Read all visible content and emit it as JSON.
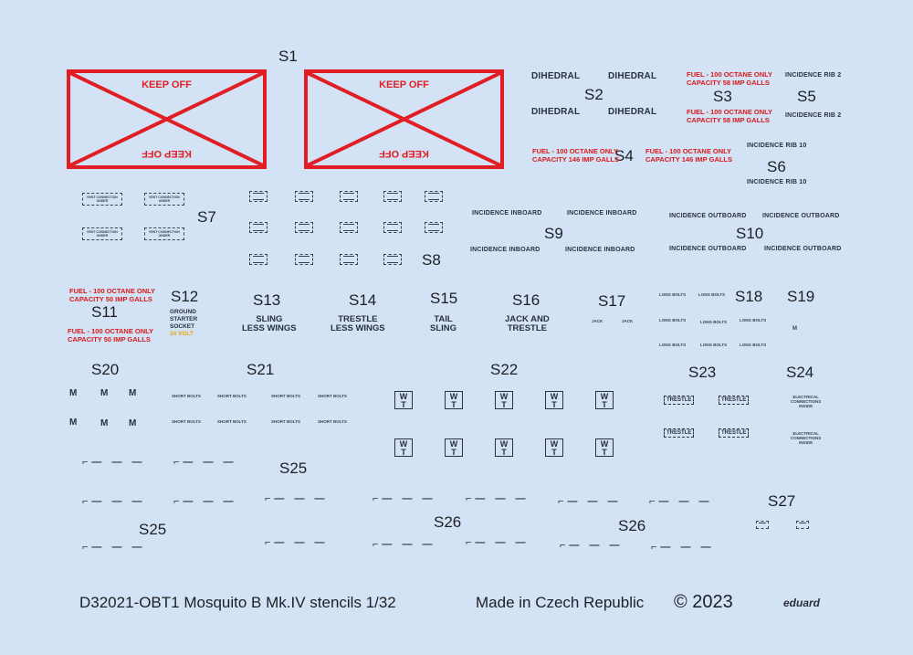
{
  "set_labels": [
    "S1",
    "S2",
    "S3",
    "S4",
    "S5",
    "S6",
    "S7",
    "S8",
    "S9",
    "S10",
    "S11",
    "S12",
    "S13",
    "S14",
    "S15",
    "S16",
    "S17",
    "S18",
    "S19",
    "S20",
    "S21",
    "S22",
    "S23",
    "S24",
    "S25",
    "S26",
    "S27"
  ],
  "stencils": {
    "keep_off": "KEEP OFF",
    "dihedral": "DIHEDRAL",
    "fuel_58": [
      "FUEL - 100 OCTANE ONLY",
      "CAPACITY 58 IMP GALLS"
    ],
    "fuel_146": [
      "FUEL - 100 OCTANE ONLY",
      "CAPACITY 146 IMP GALLS"
    ],
    "fuel_50": [
      "FUEL - 100 OCTANE ONLY",
      "CAPACITY 50 IMP GALLS"
    ],
    "incidence_rib_2": "INCIDENCE RIB 2",
    "incidence_rib_10": "INCIDENCE  RIB  10",
    "incidence_inboard": "INCIDENCE  INBOARD",
    "incidence_outboard": "INCIDENCE  OUTBOARD",
    "vent_connection": [
      "VENT CONNECTION",
      "UNDER"
    ],
    "ground_starter": [
      "GROUND",
      "STARTER",
      "SOCKET",
      "24 VOLT"
    ],
    "sling_less_wings": [
      "SLING",
      "LESS WINGS"
    ],
    "trestle_less_wings": [
      "TRESTLE",
      "LESS WINGS"
    ],
    "tail_sling": [
      "TAIL",
      "SLING"
    ],
    "jack_and_trestle": [
      "JACK AND",
      "TRESTLE"
    ],
    "jack": "JACK",
    "long_bolts": "LONG BOLTS",
    "short_bolts": "SHORT BOLTS",
    "m": "M",
    "wt": [
      "W",
      "T"
    ],
    "trestle": "TRESTLE",
    "electrical": [
      "ELECTRICAL",
      "CONNECTIONS",
      "INSIDE"
    ]
  },
  "footer": {
    "title": "D32021-OBT1 Mosquito B Mk.IV stencils 1/32",
    "made_in": "Made in Czech Republic",
    "copyright": "© 2023",
    "brand": "eduard"
  }
}
